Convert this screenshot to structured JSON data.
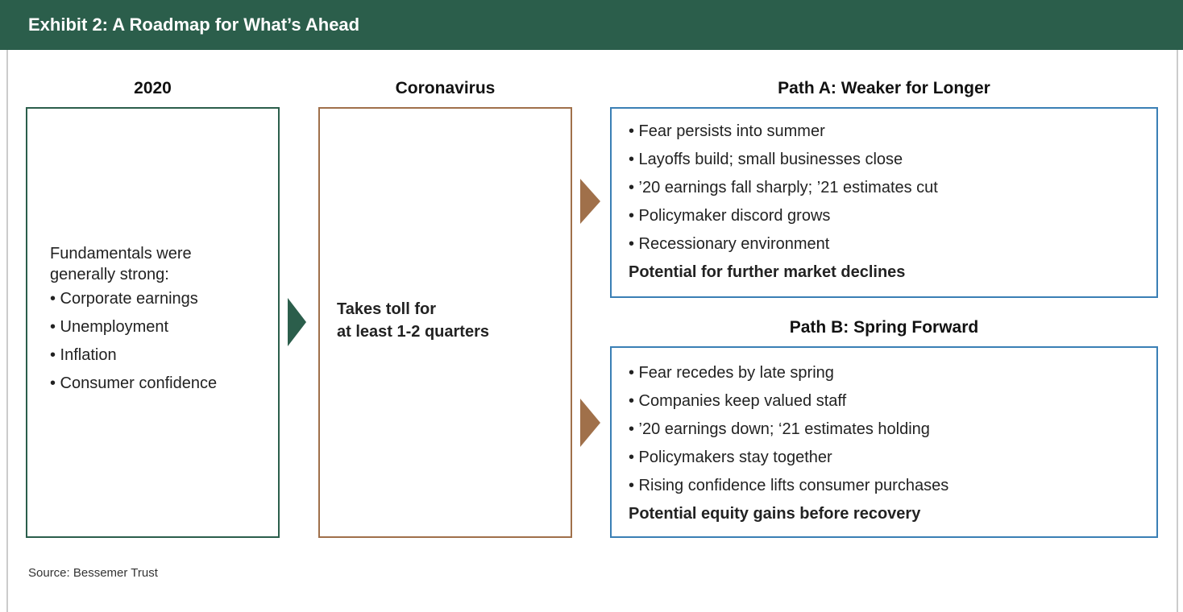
{
  "header": {
    "title": "Exhibit 2: A Roadmap for What’s Ahead"
  },
  "col_2020": {
    "heading": "2020",
    "intro": [
      "Fundamentals were",
      "generally strong:"
    ],
    "bullets": [
      "• Corporate earnings",
      "• Unemployment",
      "• Inflation",
      "• Consumer confidence"
    ]
  },
  "col_virus": {
    "heading": "Coronavirus",
    "lines": [
      "Takes toll for",
      "at least 1-2 quarters"
    ]
  },
  "paths": [
    {
      "heading": "Path A: Weaker for Longer",
      "bullets": [
        "• Fear persists into summer",
        "• Layoffs build; small businesses close",
        "• ’20 earnings fall sharply; ’21 estimates cut",
        "• Policymaker discord grows",
        "• Recessionary environment"
      ],
      "conclusion": "Potential for further market declines"
    },
    {
      "heading": "Path B: Spring Forward",
      "bullets": [
        "• Fear recedes by late spring",
        "• Companies keep valued staff",
        "• ’20 earnings down; ‘21 estimates holding",
        "• Policymakers stay together",
        "• Rising confidence lifts consumer purchases"
      ],
      "conclusion": "Potential equity gains before recovery"
    }
  ],
  "footer": {
    "source": "Source: Bessemer Trust"
  }
}
